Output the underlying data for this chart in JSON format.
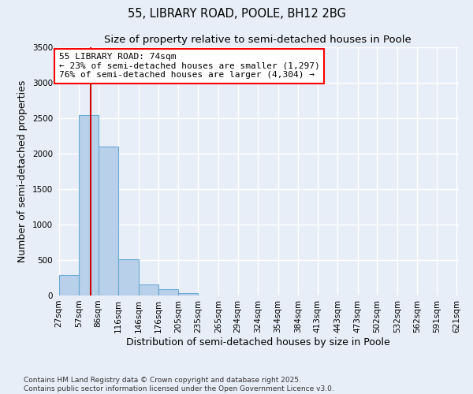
{
  "title": "55, LIBRARY ROAD, POOLE, BH12 2BG",
  "subtitle": "Size of property relative to semi-detached houses in Poole",
  "xlabel": "Distribution of semi-detached houses by size in Poole",
  "ylabel": "Number of semi-detached properties",
  "bins": [
    27,
    57,
    86,
    116,
    146,
    176,
    205,
    235,
    265,
    294,
    324,
    354,
    384,
    413,
    443,
    473,
    502,
    532,
    562,
    591,
    621
  ],
  "bar_heights": [
    290,
    2540,
    2100,
    510,
    160,
    90,
    30,
    0,
    0,
    0,
    0,
    0,
    0,
    0,
    0,
    0,
    0,
    0,
    0,
    0
  ],
  "bar_color": "#b8d0ea",
  "bar_edge_color": "#6aaad4",
  "property_size": 74,
  "property_label": "55 LIBRARY ROAD: 74sqm",
  "pct_smaller": 23,
  "pct_larger": 76,
  "n_smaller": 1297,
  "n_larger": 4304,
  "vline_color": "#cc0000",
  "ylim": [
    0,
    3500
  ],
  "yticks": [
    0,
    500,
    1000,
    1500,
    2000,
    2500,
    3000,
    3500
  ],
  "background_color": "#e8eef8",
  "grid_color": "#ffffff",
  "title_fontsize": 10.5,
  "subtitle_fontsize": 9.5,
  "axis_label_fontsize": 9,
  "tick_fontsize": 7.5,
  "footer_text": "Contains HM Land Registry data © Crown copyright and database right 2025.\nContains public sector information licensed under the Open Government Licence v3.0."
}
